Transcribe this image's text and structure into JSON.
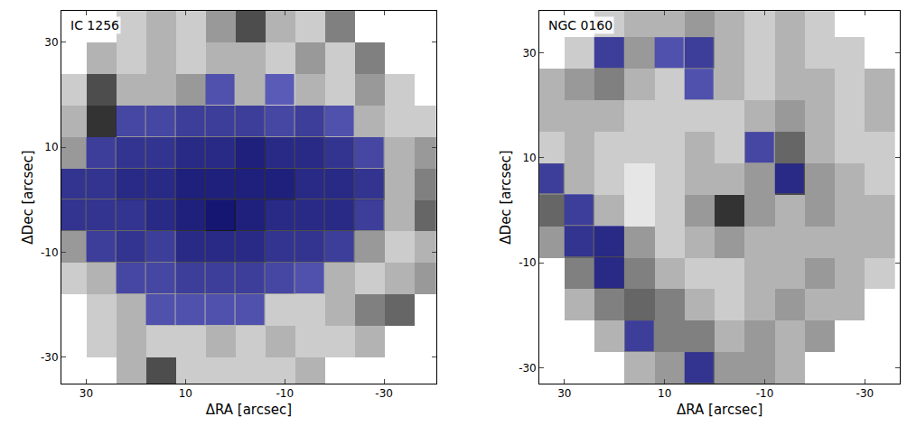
{
  "chart_data": [
    {
      "type": "heatmap",
      "title": "IC 1256",
      "x_label": "ΔRA [arcsec]",
      "y_label": "ΔDec [arcsec]",
      "xlim": [
        35,
        -40.5
      ],
      "ylim": [
        -35,
        36
      ],
      "xticks": [
        30,
        10,
        -10,
        -30
      ],
      "yticks": [
        -30,
        -10,
        10,
        30
      ],
      "color": "#1414aa",
      "x": [
        33,
        27,
        21,
        15,
        9,
        3,
        -3,
        -9,
        -15,
        -21,
        -27,
        -33,
        -39
      ],
      "y": [
        33,
        27,
        21,
        15,
        9,
        3,
        -3,
        -9,
        -15,
        -21,
        -27,
        -33
      ],
      "cells": [
        [
          null,
          null,
          0.2,
          0.3,
          0.2,
          0.4,
          0.7,
          0.3,
          0.2,
          0.5,
          null,
          null,
          null
        ],
        [
          null,
          0.3,
          0.2,
          0.3,
          0.2,
          0.3,
          0.3,
          0.2,
          0.4,
          0.2,
          0.5,
          null,
          null
        ],
        [
          0.2,
          0.7,
          0.3,
          0.3,
          0.4,
          0.3,
          0.3,
          0.2,
          0.3,
          0.2,
          0.4,
          0.2,
          null
        ],
        [
          0.3,
          0.8,
          0.4,
          0.4,
          0.5,
          0.5,
          0.5,
          0.4,
          0.5,
          0.3,
          0.3,
          0.2,
          0.2
        ],
        [
          0.4,
          0.5,
          0.6,
          0.6,
          0.7,
          0.7,
          0.8,
          0.7,
          0.7,
          0.6,
          0.4,
          0.3,
          0.4
        ],
        [
          0.6,
          0.6,
          0.7,
          0.7,
          0.8,
          0.8,
          0.8,
          0.8,
          0.7,
          0.7,
          0.6,
          0.3,
          0.5
        ],
        [
          0.6,
          0.6,
          0.6,
          0.7,
          0.8,
          0.9,
          0.8,
          0.7,
          0.7,
          0.7,
          0.5,
          0.3,
          0.6
        ],
        [
          0.4,
          0.5,
          0.6,
          0.5,
          0.7,
          0.7,
          0.7,
          0.6,
          0.6,
          0.5,
          0.4,
          0.2,
          0.3
        ],
        [
          0.2,
          0.3,
          0.4,
          0.4,
          0.5,
          0.5,
          0.5,
          0.4,
          0.3,
          0.3,
          0.2,
          0.3,
          0.4
        ],
        [
          null,
          0.2,
          0.3,
          0.3,
          0.3,
          0.3,
          0.3,
          0.2,
          0.2,
          0.3,
          0.5,
          0.6,
          null
        ],
        [
          null,
          0.2,
          0.3,
          0.2,
          0.2,
          0.3,
          0.2,
          0.3,
          0.2,
          0.2,
          0.3,
          null,
          null
        ],
        [
          null,
          null,
          0.3,
          0.7,
          0.2,
          0.2,
          0.2,
          0.2,
          0.3,
          null,
          null,
          null,
          null
        ]
      ],
      "highlight": [
        [
          0,
          0,
          0,
          0,
          0,
          0,
          0,
          0,
          0,
          0,
          0,
          0,
          0
        ],
        [
          0,
          0,
          0,
          0,
          0,
          0,
          0,
          0,
          0,
          0,
          0,
          0,
          0
        ],
        [
          0,
          0,
          0,
          0,
          0,
          1,
          0,
          1,
          0,
          0,
          0,
          0,
          0
        ],
        [
          0,
          0,
          1,
          1,
          1,
          1,
          1,
          1,
          1,
          1,
          0,
          0,
          0
        ],
        [
          0,
          1,
          1,
          1,
          1,
          1,
          1,
          1,
          1,
          1,
          1,
          0,
          0
        ],
        [
          1,
          1,
          1,
          1,
          1,
          1,
          1,
          1,
          1,
          1,
          1,
          0,
          0
        ],
        [
          1,
          1,
          1,
          1,
          1,
          1,
          1,
          1,
          1,
          1,
          1,
          0,
          0
        ],
        [
          0,
          1,
          1,
          1,
          1,
          1,
          1,
          1,
          1,
          1,
          0,
          0,
          0
        ],
        [
          0,
          0,
          1,
          1,
          1,
          1,
          1,
          1,
          1,
          0,
          0,
          0,
          0
        ],
        [
          0,
          0,
          0,
          1,
          1,
          1,
          1,
          0,
          0,
          0,
          0,
          0,
          0
        ],
        [
          0,
          0,
          0,
          0,
          0,
          0,
          0,
          0,
          0,
          0,
          0,
          0,
          0
        ],
        [
          0,
          0,
          0,
          0,
          0,
          0,
          0,
          0,
          0,
          0,
          0,
          0,
          0
        ]
      ]
    },
    {
      "type": "heatmap",
      "title": "NGC 0160",
      "x_label": "ΔRA [arcsec]",
      "y_label": "ΔDec [arcsec]",
      "xlim": [
        35,
        -37
      ],
      "ylim": [
        -33,
        38
      ],
      "xticks": [
        30,
        10,
        -10,
        -30
      ],
      "yticks": [
        -30,
        -10,
        10,
        30
      ],
      "color": "#1414aa",
      "x": [
        33,
        27,
        21,
        15,
        9,
        3,
        -3,
        -9,
        -15,
        -21,
        -27,
        -33
      ],
      "y": [
        36,
        30,
        24,
        18,
        12,
        6,
        0,
        -6,
        -12,
        -18,
        -24,
        -30
      ],
      "cells": [
        [
          null,
          null,
          0.2,
          0.3,
          0.3,
          0.4,
          0.3,
          0.2,
          0.3,
          0.2,
          null,
          null
        ],
        [
          null,
          0.2,
          0.5,
          0.4,
          0.3,
          0.5,
          0.3,
          0.2,
          0.3,
          0.2,
          0.2,
          null
        ],
        [
          0.3,
          0.4,
          0.5,
          0.3,
          0.2,
          0.3,
          0.3,
          0.2,
          0.3,
          0.3,
          0.2,
          0.3
        ],
        [
          0.3,
          0.3,
          0.3,
          0.2,
          0.2,
          0.2,
          0.2,
          0.3,
          0.4,
          0.3,
          0.2,
          0.3
        ],
        [
          0.2,
          0.3,
          0.2,
          0.2,
          0.2,
          0.3,
          0.2,
          0.4,
          0.6,
          0.3,
          0.2,
          0.2
        ],
        [
          0.5,
          0.3,
          0.2,
          0.1,
          0.2,
          0.3,
          0.3,
          0.4,
          0.7,
          0.4,
          0.3,
          0.2
        ],
        [
          0.6,
          0.5,
          0.3,
          0.1,
          0.2,
          0.4,
          0.8,
          0.4,
          0.3,
          0.4,
          0.3,
          0.3
        ],
        [
          0.4,
          0.6,
          0.7,
          0.4,
          0.2,
          0.3,
          0.4,
          0.3,
          0.3,
          0.3,
          0.3,
          0.3
        ],
        [
          null,
          0.5,
          0.7,
          0.5,
          0.3,
          0.2,
          0.2,
          0.3,
          0.3,
          0.4,
          0.3,
          0.2
        ],
        [
          null,
          0.3,
          0.5,
          0.6,
          0.5,
          0.3,
          0.2,
          0.3,
          0.4,
          0.3,
          0.3,
          null
        ],
        [
          null,
          null,
          0.3,
          0.5,
          0.5,
          0.5,
          0.3,
          0.4,
          0.3,
          0.4,
          null,
          null
        ],
        [
          null,
          null,
          null,
          0.3,
          0.4,
          0.6,
          0.4,
          0.4,
          0.3,
          null,
          null,
          null
        ]
      ],
      "highlight": [
        [
          0,
          0,
          0,
          0,
          0,
          0,
          0,
          0,
          0,
          0,
          0,
          0
        ],
        [
          0,
          0,
          1,
          0,
          1,
          1,
          0,
          0,
          0,
          0,
          0,
          0
        ],
        [
          0,
          0,
          0,
          0,
          0,
          1,
          0,
          0,
          0,
          0,
          0,
          0
        ],
        [
          0,
          0,
          0,
          0,
          0,
          0,
          0,
          0,
          0,
          0,
          0,
          0
        ],
        [
          0,
          0,
          0,
          0,
          0,
          0,
          0,
          1,
          0,
          0,
          0,
          0
        ],
        [
          1,
          0,
          0,
          0,
          0,
          0,
          0,
          0,
          1,
          0,
          0,
          0
        ],
        [
          0,
          1,
          0,
          0,
          0,
          0,
          0,
          0,
          0,
          0,
          0,
          0
        ],
        [
          0,
          1,
          1,
          0,
          0,
          0,
          0,
          0,
          0,
          0,
          0,
          0
        ],
        [
          0,
          0,
          1,
          0,
          0,
          0,
          0,
          0,
          0,
          0,
          0,
          0
        ],
        [
          0,
          0,
          0,
          0,
          0,
          0,
          0,
          0,
          0,
          0,
          0,
          0
        ],
        [
          0,
          0,
          0,
          1,
          0,
          0,
          0,
          0,
          0,
          0,
          0,
          0
        ],
        [
          0,
          0,
          0,
          0,
          0,
          1,
          0,
          0,
          0,
          0,
          0,
          0
        ]
      ]
    }
  ]
}
